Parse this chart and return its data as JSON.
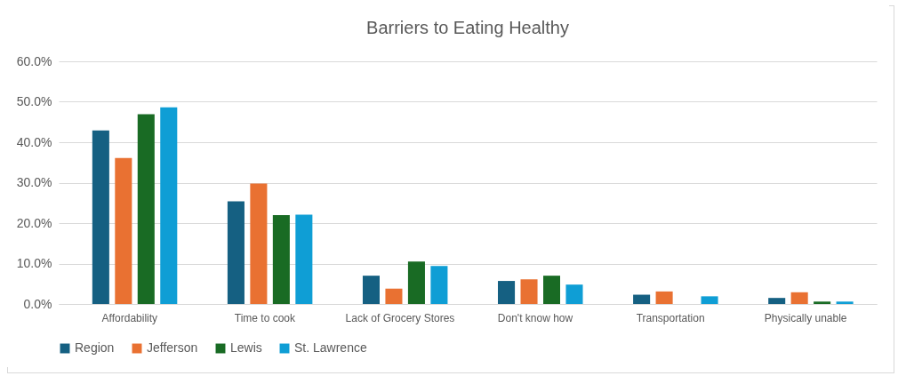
{
  "chart_data": {
    "type": "bar",
    "title": "Barriers to Eating Healthy",
    "categories": [
      "Affordability",
      "Time to cook",
      "Lack of Grocery Stores",
      "Don't know how",
      "Transportation",
      "Physically unable"
    ],
    "series": [
      {
        "name": "Region",
        "color": "#156082",
        "values": [
          42.9,
          25.4,
          7.0,
          5.7,
          2.3,
          1.5
        ]
      },
      {
        "name": "Jefferson",
        "color": "#e97132",
        "values": [
          36.1,
          29.8,
          3.8,
          6.1,
          3.1,
          2.9
        ]
      },
      {
        "name": "Lewis",
        "color": "#196b24",
        "values": [
          46.9,
          22.0,
          10.5,
          7.0,
          null,
          0.6
        ]
      },
      {
        "name": "St. Lawrence",
        "color": "#0f9ed5",
        "values": [
          48.6,
          22.1,
          9.4,
          4.8,
          1.9,
          0.6
        ]
      }
    ],
    "ylim": [
      0,
      60
    ],
    "yticks": [
      {
        "value": 0,
        "label": "0.0%"
      },
      {
        "value": 10,
        "label": "10.0%"
      },
      {
        "value": 20,
        "label": "20.0%"
      },
      {
        "value": 30,
        "label": "30.0%"
      },
      {
        "value": 40,
        "label": "40.0%"
      },
      {
        "value": 50,
        "label": "50.0%"
      },
      {
        "value": 60,
        "label": "60.0%"
      }
    ],
    "grid": true,
    "legend": "bottom"
  }
}
